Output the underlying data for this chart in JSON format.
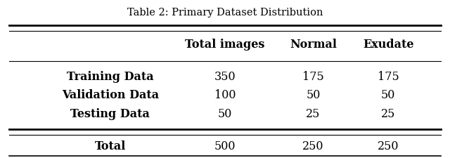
{
  "title": "Table 2: Primary Dataset Distribution",
  "col_headers": [
    "",
    "Total images",
    "Normal",
    "Exudate"
  ],
  "rows": [
    [
      "Training Data",
      "350",
      "175",
      "175"
    ],
    [
      "Validation Data",
      "100",
      "50",
      "50"
    ],
    [
      "Testing Data",
      "50",
      "25",
      "25"
    ]
  ],
  "total_row": [
    "Total",
    "500",
    "250",
    "250"
  ],
  "background_color": "#ffffff",
  "title_fontsize": 10.5,
  "header_fontsize": 11.5,
  "body_fontsize": 11.5
}
